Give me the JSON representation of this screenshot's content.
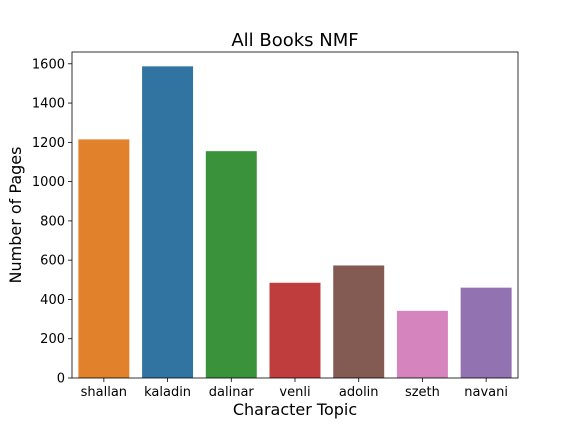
{
  "chart_data": {
    "type": "bar",
    "title": "All Books NMF",
    "xlabel": "Character Topic",
    "ylabel": "Number of Pages",
    "categories": [
      "shallan",
      "kaladin",
      "dalinar",
      "venli",
      "adolin",
      "szeth",
      "navani"
    ],
    "values": [
      1215,
      1587,
      1155,
      485,
      573,
      342,
      460
    ],
    "colors": [
      "#e1812c",
      "#3274a1",
      "#3a923a",
      "#c03d3e",
      "#845b53",
      "#d684bd",
      "#9372b2"
    ],
    "ylim": [
      0,
      1660
    ],
    "yticks": [
      0,
      200,
      400,
      600,
      800,
      1000,
      1200,
      1400,
      1600
    ],
    "grid": false,
    "legend": "none"
  }
}
